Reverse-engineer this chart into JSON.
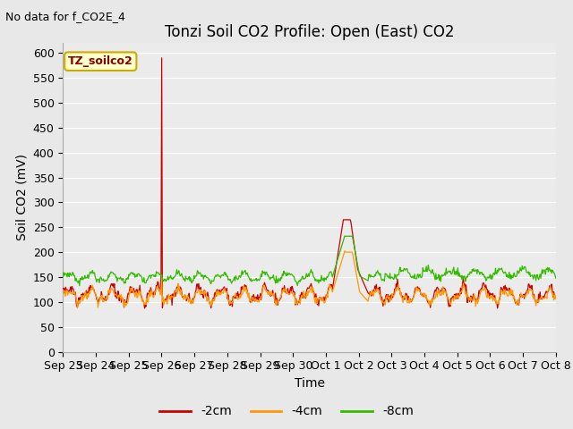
{
  "title": "Tonzi Soil CO2 Profile: Open (East) CO2",
  "subtitle": "No data for f_CO2E_4",
  "ylabel": "Soil CO2 (mV)",
  "xlabel": "Time",
  "ylim": [
    0,
    620
  ],
  "yticks": [
    0,
    50,
    100,
    150,
    200,
    250,
    300,
    350,
    400,
    450,
    500,
    550,
    600
  ],
  "xtick_labels": [
    "Sep 23",
    "Sep 24",
    "Sep 25",
    "Sep 26",
    "Sep 27",
    "Sep 28",
    "Sep 29",
    "Sep 30",
    "Oct 1",
    "Oct 2",
    "Oct 3",
    "Oct 4",
    "Oct 5",
    "Oct 6",
    "Oct 7",
    "Oct 8"
  ],
  "legend_label": "TZ_soilco2",
  "series_labels": [
    "-2cm",
    "-4cm",
    "-8cm"
  ],
  "series_colors": [
    "#cc0000",
    "#ff9900",
    "#33bb00"
  ],
  "fig_bg_color": "#e8e8e8",
  "plot_bg_color": "#ebebeb",
  "grid_color": "#ffffff",
  "title_fontsize": 12,
  "axis_label_fontsize": 10,
  "tick_fontsize": 9,
  "legend_box_facecolor": "#ffffcc",
  "legend_box_edgecolor": "#ccaa00",
  "legend_text_color": "#880000"
}
